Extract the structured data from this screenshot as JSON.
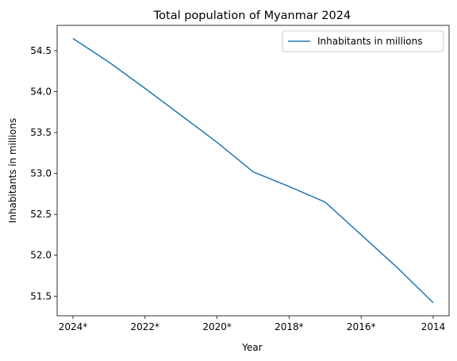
{
  "chart_data": {
    "type": "line",
    "title": "Total population of Myanmar 2024",
    "xlabel": "Year",
    "ylabel": "Inhabitants in millions",
    "x": [
      "2024*",
      "2023*",
      "2022*",
      "2021*",
      "2020*",
      "2019*",
      "2018*",
      "2017*",
      "2016*",
      "2015*",
      "2014"
    ],
    "x_tick_labels": [
      "2024*",
      "2022*",
      "2020*",
      "2018*",
      "2016*",
      "2014"
    ],
    "series": [
      {
        "name": "Inhabitants in millions",
        "color": "#1f77b4",
        "values": [
          54.65,
          54.36,
          54.04,
          53.71,
          53.38,
          53.02,
          52.84,
          52.65,
          52.25,
          51.85,
          51.42
        ]
      }
    ],
    "ylim": [
      51.26,
      54.81
    ],
    "y_ticks": [
      51.5,
      52.0,
      52.5,
      53.0,
      53.5,
      54.0,
      54.5
    ],
    "y_tick_labels": [
      "51.5",
      "52.0",
      "52.5",
      "53.0",
      "53.5",
      "54.0",
      "54.5"
    ],
    "grid": false,
    "legend": "upper-right"
  }
}
